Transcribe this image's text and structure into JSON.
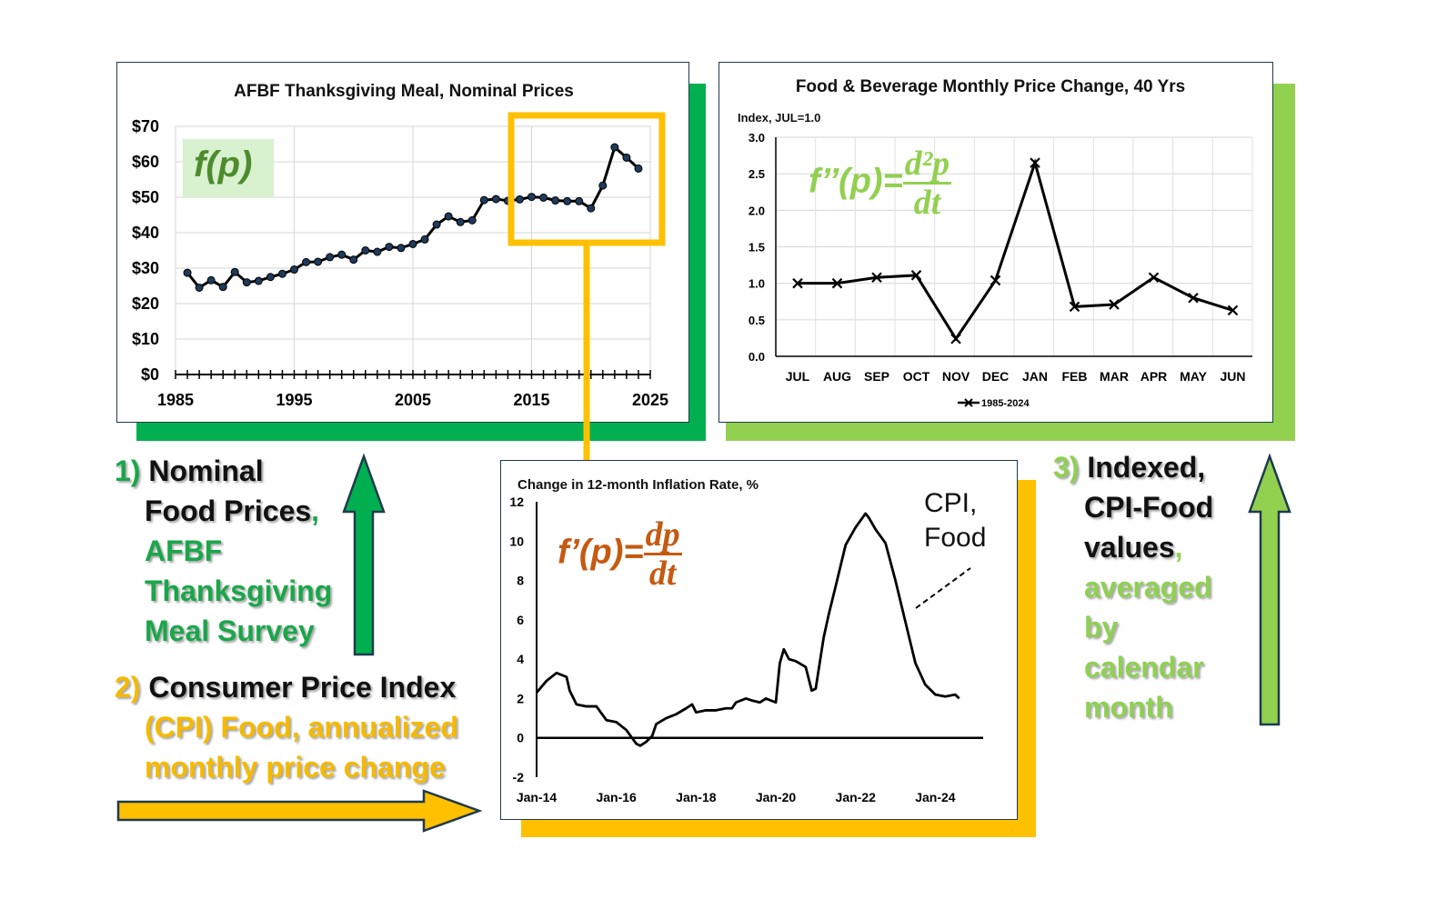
{
  "colors": {
    "green": "#00b050",
    "light_green": "#92d050",
    "gold": "#ffc000",
    "orange_brown": "#c55a11"
  },
  "chart_data": [
    {
      "type": "line",
      "title": "AFBF Thanksgiving Meal, Nominal Prices",
      "ylim": [
        0,
        70
      ],
      "yticks": [
        "$0",
        "$10",
        "$20",
        "$30",
        "$40",
        "$50",
        "$60",
        "$70"
      ],
      "xticks": [
        "1985",
        "1995",
        "2005",
        "2015",
        "2025"
      ],
      "x": [
        1986,
        1987,
        1988,
        1989,
        1990,
        1991,
        1992,
        1993,
        1994,
        1995,
        1996,
        1997,
        1998,
        1999,
        2000,
        2001,
        2002,
        2003,
        2004,
        2005,
        2006,
        2007,
        2008,
        2009,
        2010,
        2011,
        2012,
        2013,
        2014,
        2015,
        2016,
        2017,
        2018,
        2019,
        2020,
        2021,
        2022,
        2023,
        2024
      ],
      "values": [
        28.7,
        24.5,
        26.6,
        24.7,
        28.9,
        26.0,
        26.4,
        27.5,
        28.4,
        29.6,
        31.7,
        31.8,
        33.1,
        33.8,
        32.4,
        35.0,
        34.6,
        36.0,
        35.7,
        36.8,
        38.1,
        42.3,
        44.6,
        43.0,
        43.5,
        49.2,
        49.5,
        49.0,
        49.4,
        50.1,
        49.9,
        49.1,
        48.9,
        48.9,
        46.9,
        53.3,
        64.1,
        61.2,
        58.1
      ],
      "grid": true,
      "annotation": "f(p)"
    },
    {
      "type": "line",
      "title": "Food & Beverage Monthly Price Change, 40 Yrs",
      "ylabel": "Index,  JUL=1.0",
      "ylim": [
        0,
        3
      ],
      "yticks": [
        "0.0",
        "0.5",
        "1.0",
        "1.5",
        "2.0",
        "2.5",
        "3.0"
      ],
      "categories": [
        "JUL",
        "AUG",
        "SEP",
        "OCT",
        "NOV",
        "DEC",
        "JAN",
        "FEB",
        "MAR",
        "APR",
        "MAY",
        "JUN"
      ],
      "series": [
        {
          "name": "1985-2024",
          "values": [
            1.0,
            1.0,
            1.08,
            1.11,
            0.24,
            1.04,
            2.65,
            0.68,
            0.71,
            1.08,
            0.8,
            0.63
          ]
        }
      ],
      "legend": "bottom",
      "grid": true,
      "annotation": "f’’(p)="
    },
    {
      "type": "line",
      "title": "Change in 12-month Inflation Rate, %",
      "ylim": [
        -2,
        12
      ],
      "yticks": [
        "-2",
        "0",
        "2",
        "4",
        "6",
        "8",
        "10",
        "12"
      ],
      "xticks": [
        "Jan-14",
        "Jan-16",
        "Jan-18",
        "Jan-20",
        "Jan-22",
        "Jan-24"
      ],
      "x": [
        2014.0,
        2014.25,
        2014.5,
        2014.75,
        2014.83,
        2015.0,
        2015.25,
        2015.5,
        2015.75,
        2016.0,
        2016.25,
        2016.5,
        2016.6,
        2016.75,
        2016.9,
        2017.0,
        2017.25,
        2017.5,
        2017.75,
        2017.9,
        2018.0,
        2018.25,
        2018.5,
        2018.75,
        2018.9,
        2019.0,
        2019.25,
        2019.4,
        2019.6,
        2019.75,
        2020.0,
        2020.1,
        2020.2,
        2020.33,
        2020.5,
        2020.75,
        2020.9,
        2021.0,
        2021.1,
        2021.2,
        2021.33,
        2021.5,
        2021.75,
        2022.0,
        2022.25,
        2022.33,
        2022.5,
        2022.75,
        2023.0,
        2023.25,
        2023.5,
        2023.75,
        2024.0,
        2024.25,
        2024.5,
        2024.6
      ],
      "values": [
        2.3,
        2.9,
        3.3,
        3.1,
        2.4,
        1.7,
        1.6,
        1.6,
        0.9,
        0.8,
        0.4,
        -0.3,
        -0.4,
        -0.2,
        0.1,
        0.7,
        1.0,
        1.2,
        1.5,
        1.7,
        1.3,
        1.4,
        1.4,
        1.5,
        1.5,
        1.8,
        2.0,
        1.9,
        1.8,
        2.0,
        1.8,
        3.8,
        4.5,
        4.0,
        3.9,
        3.6,
        2.4,
        2.5,
        3.8,
        5.1,
        6.3,
        7.7,
        9.8,
        10.7,
        11.4,
        11.2,
        10.6,
        9.9,
        8.0,
        5.9,
        3.8,
        2.7,
        2.2,
        2.1,
        2.2,
        2.0
      ],
      "grid": false,
      "annotation": "f’(p)=",
      "series_label": "CPI, Food"
    }
  ],
  "formulas": {
    "f2_num": "d²p",
    "f2_den": "dt",
    "f1_num": "dp",
    "f1_den": "dt"
  },
  "labels": {
    "n1": "1)",
    "n1_line1": "Nominal",
    "n1_line2": "Food Prices",
    "n1_comma": ",",
    "n1_sub1": "AFBF",
    "n1_sub2": "Thanksgiving",
    "n1_sub3": "Meal Survey",
    "n2": "2)",
    "n2_title": "Consumer Price Index",
    "n2_sub1": "(CPI) Food, annualized",
    "n2_sub2": "monthly price change",
    "n3": "3)",
    "n3_line1": "Indexed,",
    "n3_line2": "CPI-Food",
    "n3_line3": "values",
    "n3_comma": ",",
    "n3_sub1": "averaged",
    "n3_sub2": "by",
    "n3_sub3": "calendar",
    "n3_sub4": "month"
  }
}
